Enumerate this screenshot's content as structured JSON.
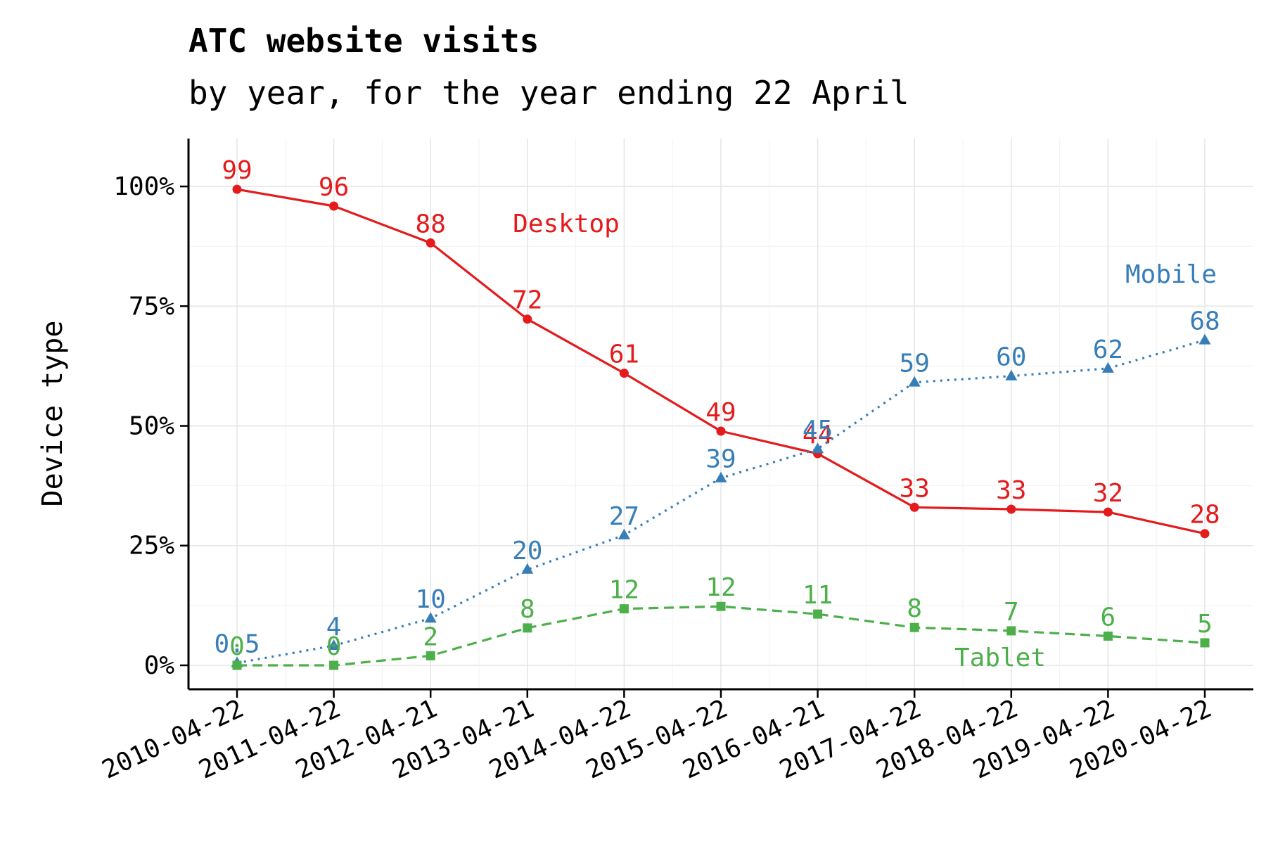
{
  "chart_data": {
    "type": "line",
    "title": "ATC website visits",
    "subtitle": "by year, for the year ending 22 April",
    "ylabel": "Device type",
    "xlabel": "",
    "ylim": [
      -5,
      110
    ],
    "yticks": [
      0,
      25,
      50,
      75,
      100
    ],
    "ytick_labels": [
      "0%",
      "25%",
      "50%",
      "75%",
      "100%"
    ],
    "x": [
      "2010-04-22",
      "2011-04-22",
      "2012-04-21",
      "2013-04-21",
      "2014-04-22",
      "2015-04-22",
      "2016-04-21",
      "2017-04-22",
      "2018-04-22",
      "2019-04-22",
      "2020-04-22"
    ],
    "grid": true,
    "legend": "none",
    "series": [
      {
        "name": "Desktop",
        "color": "#e41a1c",
        "line_style": "solid",
        "marker": "circle",
        "values": [
          99.4,
          95.9,
          88.2,
          72.3,
          61.0,
          48.9,
          44.2,
          33.0,
          32.6,
          32.0,
          27.5
        ],
        "labels": [
          "99",
          "96",
          "88",
          "72",
          "61",
          "49",
          "44",
          "33",
          "33",
          "32",
          "28"
        ]
      },
      {
        "name": "Mobile",
        "color": "#377eb8",
        "line_style": "dotted",
        "marker": "triangle",
        "values": [
          0.5,
          4.1,
          9.8,
          20.0,
          27.2,
          39.1,
          45.2,
          59.1,
          60.4,
          62.0,
          67.9
        ],
        "labels": [
          "0.5",
          "4",
          "10",
          "20",
          "27",
          "39",
          "45",
          "59",
          "60",
          "62",
          "68"
        ]
      },
      {
        "name": "Tablet",
        "color": "#4daf4a",
        "line_style": "dashed",
        "marker": "square",
        "values": [
          0.0,
          0.0,
          2.0,
          7.8,
          11.8,
          12.3,
          10.7,
          7.9,
          7.2,
          6.1,
          4.7
        ],
        "labels": [
          "0",
          "0",
          "2",
          "8",
          "12",
          "12",
          "11",
          "8",
          "7",
          "6",
          "5"
        ]
      }
    ]
  }
}
